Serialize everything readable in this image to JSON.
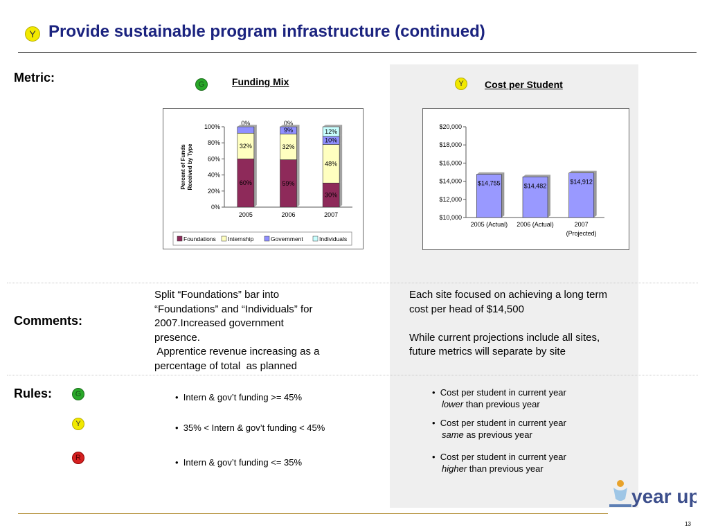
{
  "header": {
    "status_badge": "Y",
    "title": "Provide sustainable program infrastructure (continued)"
  },
  "labels": {
    "metric": "Metric:",
    "comments": "Comments:",
    "rules": "Rules:"
  },
  "colors": {
    "title": "#1b237f",
    "foundations": "#8e2a5a",
    "internship": "#ffffc0",
    "government": "#8f8fff",
    "individuals": "#c8ffff",
    "cost_bar": "#9999ff"
  },
  "funding_mix": {
    "status_badge": "G",
    "title": "Funding Mix"
  },
  "cost_per_student": {
    "status_badge": "Y",
    "title": "Cost per Student"
  },
  "chart_data": [
    {
      "type": "bar",
      "stacked": true,
      "title": "Funding Mix",
      "ylabel": "Percent of Funds Received by Type",
      "categories": [
        "2005",
        "2006",
        "2007"
      ],
      "yticks": [
        "0%",
        "20%",
        "40%",
        "60%",
        "80%",
        "100%"
      ],
      "ylim": [
        0,
        100
      ],
      "series": [
        {
          "name": "Foundations",
          "values": [
            60,
            59,
            30
          ],
          "labels": [
            "60%",
            "59%",
            "30%"
          ]
        },
        {
          "name": "Internship",
          "values": [
            32,
            32,
            48
          ],
          "labels": [
            "32%",
            "32%",
            "48%"
          ]
        },
        {
          "name": "Government",
          "values": [
            8,
            9,
            10
          ],
          "labels": [
            "",
            "9%",
            "10%"
          ]
        },
        {
          "name": "Individuals",
          "values": [
            0,
            0,
            12
          ],
          "labels": [
            "0%",
            "0%",
            "12%"
          ]
        }
      ],
      "legend": "bottom",
      "grid": false
    },
    {
      "type": "bar",
      "title": "Cost per Student",
      "categories": [
        "2005 (Actual)",
        "2006 (Actual)",
        "2007 (Projected)"
      ],
      "category_lines": [
        [
          "2005 (Actual)"
        ],
        [
          "2006 (Actual)"
        ],
        [
          "2007",
          "(Projected)"
        ]
      ],
      "values": [
        14755,
        14482,
        14912
      ],
      "value_labels": [
        "$14,755",
        "$14,482",
        "$14,912"
      ],
      "yticks": [
        "$10,000",
        "$12,000",
        "$14,000",
        "$16,000",
        "$18,000",
        "$20,000"
      ],
      "ylim": [
        10000,
        20000
      ],
      "grid": false
    }
  ],
  "comments": {
    "left": [
      "Split “Foundations” bar into",
      "“Foundations” and “Individuals” for",
      "2007.Increased government",
      "presence.",
      " Apprentice revenue increasing as a",
      "percentage of total  as planned"
    ],
    "right_p1": [
      "Each site focused on achieving a long term",
      "cost per head of $14,500"
    ],
    "right_p2": [
      "While current projections include all sites,",
      "future metrics will separate by site"
    ]
  },
  "rules": [
    {
      "badge": "G",
      "left": "Intern & gov’t funding >= 45%",
      "right_line1": "Cost per student in current year",
      "right_em": "lower",
      "right_rest": " than previous year"
    },
    {
      "badge": "Y",
      "left": "35% < Intern & gov’t funding < 45%",
      "right_line1": "Cost per student in current year",
      "right_em": "same",
      "right_rest": " as previous year"
    },
    {
      "badge": "R",
      "left": "Intern & gov’t funding <= 35%",
      "right_line1": "Cost per student in current year",
      "right_em": "higher",
      "right_rest": " than previous year"
    }
  ],
  "footer": {
    "logo_text": "year up",
    "page_number": "13"
  }
}
